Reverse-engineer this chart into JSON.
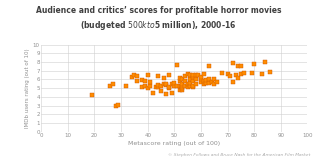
{
  "title_line1": "Audience and critics’ scores for profitable horror movies",
  "title_line2": "(budgeted $500k to $5 million), 2000-16",
  "xlabel": "Metascore rating (out of 100)",
  "ylabel": "IMDb users rating (out of 10)",
  "caption": "© Stephen Follows and Bruce Nash for the American Film Market",
  "xlim": [
    0,
    100
  ],
  "ylim": [
    0,
    10
  ],
  "xticks": [
    0,
    10,
    20,
    30,
    40,
    50,
    60,
    70,
    80,
    90,
    100
  ],
  "yticks": [
    0,
    1,
    2,
    3,
    4,
    5,
    6,
    7,
    8,
    9,
    10
  ],
  "marker_color": "#FF8C00",
  "marker_edge_color": "#CC5500",
  "background_color": "#ffffff",
  "grid_color": "#d0d0d0",
  "title_color": "#404040",
  "label_color": "#909090",
  "scatter_data": [
    [
      19,
      4.2
    ],
    [
      26,
      5.3
    ],
    [
      27,
      5.5
    ],
    [
      28,
      3.0
    ],
    [
      29,
      3.1
    ],
    [
      32,
      5.2
    ],
    [
      34,
      6.3
    ],
    [
      35,
      6.5
    ],
    [
      36,
      6.4
    ],
    [
      36,
      5.8
    ],
    [
      38,
      5.1
    ],
    [
      38,
      5.9
    ],
    [
      39,
      5.2
    ],
    [
      39,
      5.8
    ],
    [
      40,
      5.0
    ],
    [
      40,
      6.5
    ],
    [
      41,
      5.2
    ],
    [
      41,
      5.7
    ],
    [
      42,
      4.4
    ],
    [
      43,
      5.1
    ],
    [
      44,
      5.1
    ],
    [
      44,
      6.4
    ],
    [
      44,
      5.4
    ],
    [
      45,
      4.7
    ],
    [
      45,
      5.3
    ],
    [
      46,
      5.5
    ],
    [
      46,
      6.2
    ],
    [
      47,
      4.3
    ],
    [
      47,
      5.4
    ],
    [
      47,
      5.5
    ],
    [
      48,
      5.0
    ],
    [
      48,
      5.1
    ],
    [
      48,
      6.5
    ],
    [
      49,
      4.4
    ],
    [
      49,
      5.5
    ],
    [
      50,
      5.2
    ],
    [
      50,
      5.6
    ],
    [
      51,
      5.3
    ],
    [
      51,
      7.7
    ],
    [
      52,
      4.8
    ],
    [
      52,
      5.3
    ],
    [
      52,
      5.8
    ],
    [
      52,
      6.2
    ],
    [
      53,
      4.8
    ],
    [
      53,
      5.0
    ],
    [
      53,
      5.3
    ],
    [
      53,
      5.5
    ],
    [
      53,
      6.0
    ],
    [
      54,
      5.3
    ],
    [
      54,
      5.8
    ],
    [
      54,
      6.4
    ],
    [
      55,
      5.1
    ],
    [
      55,
      5.5
    ],
    [
      55,
      6.6
    ],
    [
      56,
      5.2
    ],
    [
      56,
      5.6
    ],
    [
      56,
      6.0
    ],
    [
      56,
      6.5
    ],
    [
      57,
      5.1
    ],
    [
      57,
      5.3
    ],
    [
      57,
      5.8
    ],
    [
      57,
      6.3
    ],
    [
      57,
      6.5
    ],
    [
      58,
      5.5
    ],
    [
      58,
      6.0
    ],
    [
      58,
      6.5
    ],
    [
      59,
      6.5
    ],
    [
      60,
      5.7
    ],
    [
      60,
      6.1
    ],
    [
      60,
      6.3
    ],
    [
      61,
      5.5
    ],
    [
      61,
      5.8
    ],
    [
      61,
      6.6
    ],
    [
      62,
      5.6
    ],
    [
      62,
      5.9
    ],
    [
      63,
      5.6
    ],
    [
      63,
      6.0
    ],
    [
      63,
      7.5
    ],
    [
      64,
      5.7
    ],
    [
      65,
      5.5
    ],
    [
      65,
      6.0
    ],
    [
      66,
      5.7
    ],
    [
      68,
      6.8
    ],
    [
      70,
      6.6
    ],
    [
      71,
      6.4
    ],
    [
      72,
      5.7
    ],
    [
      72,
      7.9
    ],
    [
      73,
      6.5
    ],
    [
      74,
      6.2
    ],
    [
      74,
      7.5
    ],
    [
      75,
      6.6
    ],
    [
      75,
      7.5
    ],
    [
      76,
      6.8
    ],
    [
      79,
      6.7
    ],
    [
      80,
      7.8
    ],
    [
      83,
      6.6
    ],
    [
      84,
      8.0
    ],
    [
      86,
      6.9
    ]
  ]
}
